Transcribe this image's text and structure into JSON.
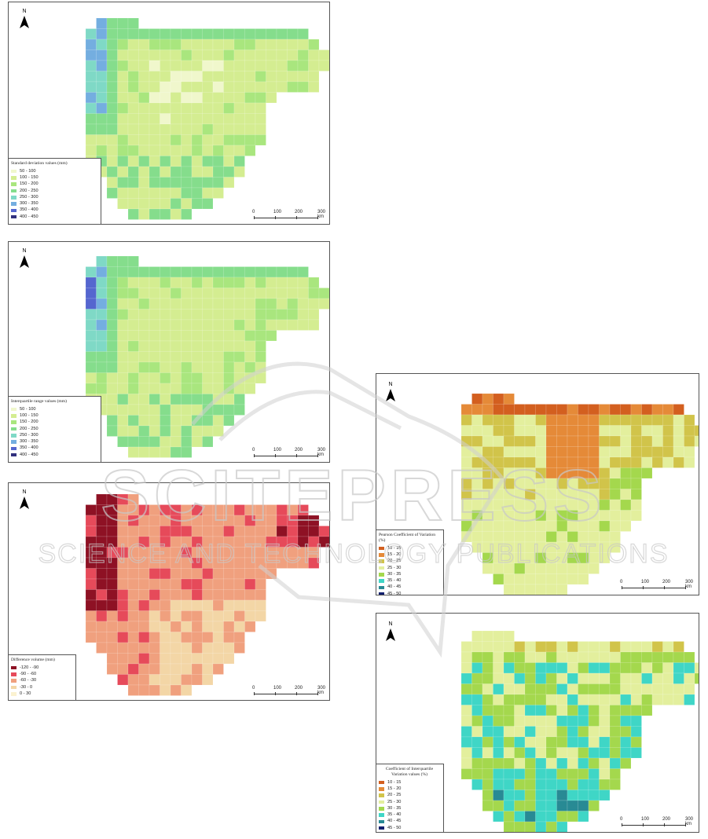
{
  "colors": {
    "sd": [
      "#f0f7cc",
      "#d4ed91",
      "#a9e67e",
      "#85dd8c",
      "#7fd9c6",
      "#74aee0",
      "#5566cf",
      "#31307e"
    ],
    "iqr": [
      "#f0f7cc",
      "#d4ed91",
      "#a9e67e",
      "#85dd8c",
      "#7fd9c6",
      "#74aee0",
      "#5566cf",
      "#31307e"
    ],
    "diff": [
      "#8e1124",
      "#e64a5a",
      "#f0a07e",
      "#f3d6a6",
      "#fbf2d0"
    ],
    "pcv": [
      "#d35f1f",
      "#e58a38",
      "#d1c44a",
      "#e3ef9d",
      "#a4d84d",
      "#3fd6c6",
      "#288a94",
      "#12206e"
    ],
    "ciqr": [
      "#d35f1f",
      "#e58a38",
      "#d1c44a",
      "#e3ef9d",
      "#a4d84d",
      "#3fd6c6",
      "#288a94",
      "#12206e"
    ]
  },
  "maps": {
    "sd": {
      "legend_title": "Standard deviation values (mm)",
      "classes": [
        "50 - 100",
        "100 - 150",
        "150 - 200",
        "200 - 250",
        "250 - 300",
        "300 - 350",
        "350 - 400",
        "400 - 450"
      ],
      "north": "N"
    },
    "iqr": {
      "legend_title": "Interquartile range values (mm)",
      "classes": [
        "50 - 100",
        "100 - 150",
        "150 - 200",
        "200 - 250",
        "250 - 300",
        "300 - 350",
        "350 - 400",
        "400 - 450"
      ],
      "north": "N"
    },
    "diff": {
      "legend_title": "Difference volume (mm)",
      "classes": [
        "-120 - -90",
        "-90 - -60",
        "-60 - -30",
        "-30 - 0",
        "0 - 30"
      ],
      "north": "N"
    },
    "pcv": {
      "legend_title": "Pearson Coefficient of Variation (%)",
      "classes": [
        "10 - 15",
        "15 - 20",
        "20 - 25",
        "25 - 30",
        "30 - 35",
        "35 - 40",
        "40 - 45",
        "45 - 50"
      ],
      "north": "N"
    },
    "ciqr": {
      "legend_title_line1": "Coefficient of Interquartile",
      "legend_title_line2": "Variation values (%)",
      "classes": [
        "10 - 15",
        "15 - 20",
        "20 - 25",
        "25 - 30",
        "30 - 35",
        "35 - 40",
        "40 - 45",
        "45 - 50"
      ],
      "north": "N"
    }
  },
  "scale_labels": [
    "0",
    "100",
    "200",
    "300 km"
  ],
  "watermark": {
    "line1": "SCITEPRESS",
    "line2": "SCIENCE AND TECHNOLOGY PUBLICATIONS"
  }
}
